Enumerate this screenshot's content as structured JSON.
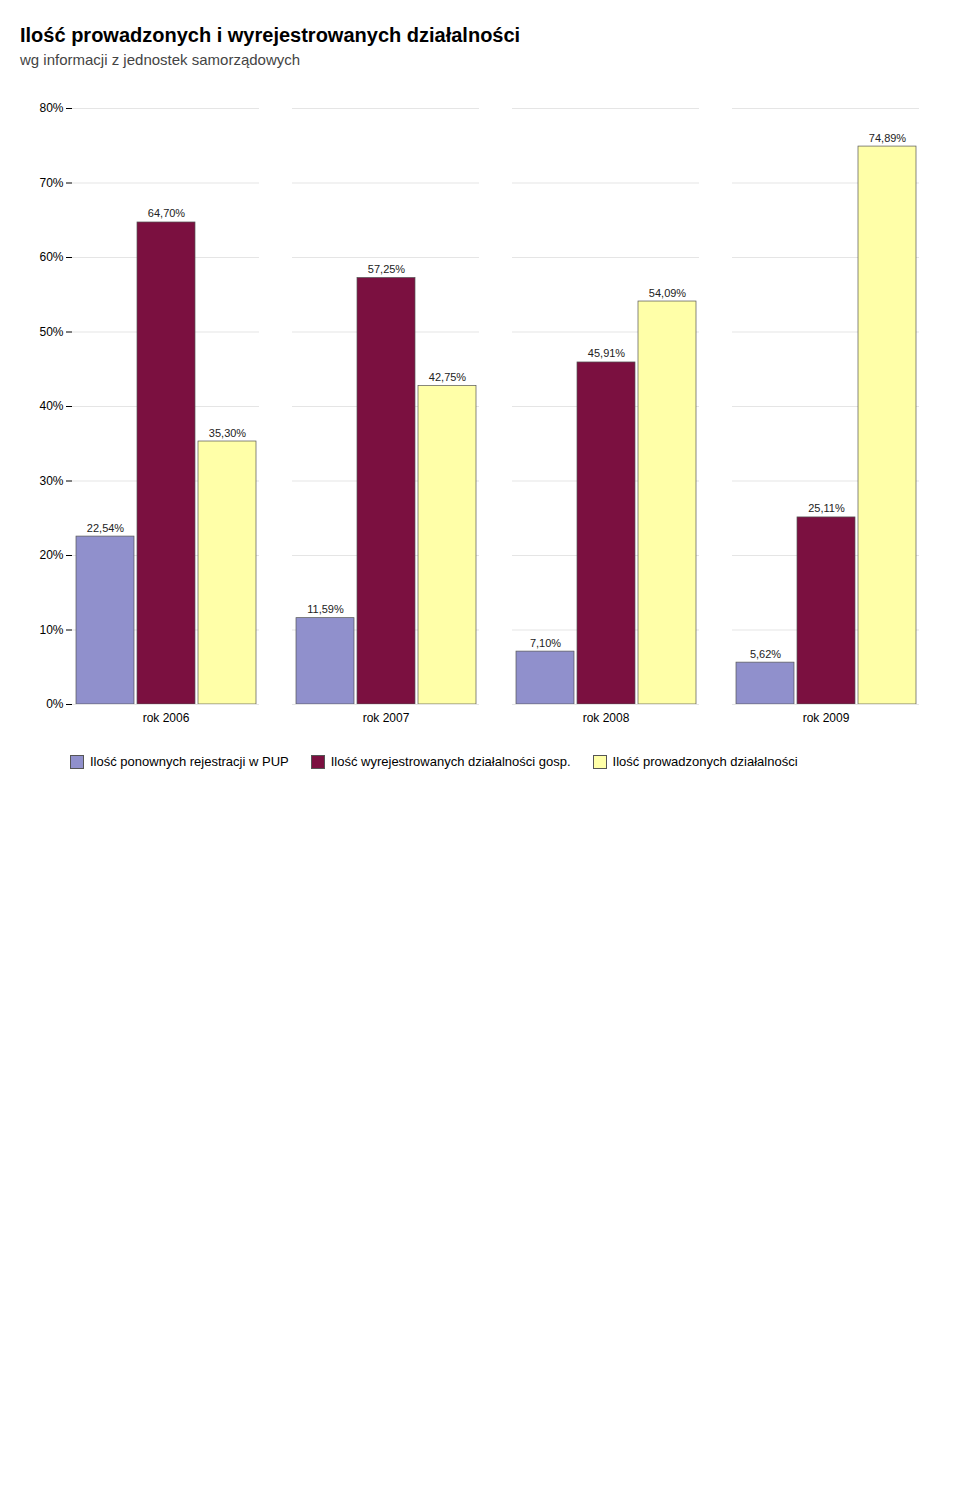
{
  "chart_data": {
    "type": "bar",
    "title": "Ilość prowadzonych i wyrejestrowanych działalności",
    "subtitle": "wg informacji z jednostek samorządowych",
    "categories": [
      "rok 2006",
      "rok 2007",
      "rok 2008",
      "rok 2009"
    ],
    "series": [
      {
        "name": "Ilość ponownych rejestracji w PUP",
        "color": "#9090cc",
        "values": [
          22.54,
          11.59,
          7.1,
          5.62
        ],
        "value_labels": [
          "22,54%",
          "11,59%",
          "7,10%",
          "5,62%"
        ]
      },
      {
        "name": "Ilość wyrejestrowanych działalności gosp.",
        "color": "#7b1040",
        "values": [
          64.7,
          57.25,
          45.91,
          25.11
        ],
        "value_labels": [
          "64,70%",
          "57,25%",
          "45,91%",
          "25,11%"
        ]
      },
      {
        "name": "Ilość prowadzonych działalności",
        "color": "#ffffa8",
        "values": [
          35.3,
          42.75,
          54.09,
          74.89
        ],
        "value_labels": [
          "35,30%",
          "42,75%",
          "54,09%",
          "74,89%"
        ]
      }
    ],
    "ylim": [
      0,
      80
    ],
    "yticks": [
      {
        "value": 0,
        "label": "0%"
      },
      {
        "value": 10,
        "label": "10%"
      },
      {
        "value": 20,
        "label": "20%"
      },
      {
        "value": 30,
        "label": "30%"
      },
      {
        "value": 40,
        "label": "40%"
      },
      {
        "value": 50,
        "label": "50%"
      },
      {
        "value": 60,
        "label": "60%"
      },
      {
        "value": 70,
        "label": "70%"
      },
      {
        "value": 80,
        "label": "80%"
      }
    ],
    "grid": true,
    "data_labels": true,
    "legend": "lower left"
  }
}
